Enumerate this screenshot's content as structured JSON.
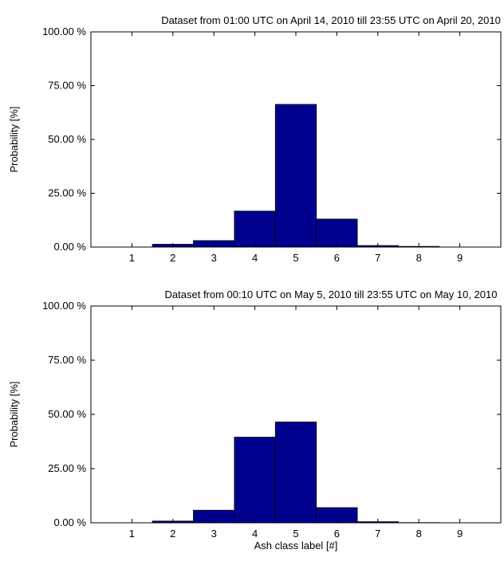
{
  "chart_data": [
    {
      "type": "bar",
      "title": "Dataset from 01:00 UTC on April 14, 2010 till 23:55 UTC on April 20, 2010",
      "xlabel": "",
      "ylabel": "Probability [%]",
      "categories": [
        "1",
        "2",
        "3",
        "4",
        "5",
        "6",
        "7",
        "8",
        "9"
      ],
      "values": [
        0.0,
        1.3,
        3.0,
        16.7,
        66.3,
        13.0,
        0.7,
        0.3,
        0.0
      ],
      "xlim": [
        0,
        10
      ],
      "ylim": [
        0,
        100
      ],
      "yticks": [
        "0.00 %",
        "25.00 %",
        "50.00 %",
        "75.00 %",
        "100.00 %"
      ],
      "ytick_values": [
        0,
        25,
        50,
        75,
        100
      ],
      "bar_color": "#00008f",
      "grid": false,
      "legend": "none"
    },
    {
      "type": "bar",
      "title": "Dataset from 00:10 UTC on May 5, 2010 till 23:55 UTC on May 10, 2010",
      "xlabel": "Ash class label [#]",
      "ylabel": "Probability [%]",
      "categories": [
        "1",
        "2",
        "3",
        "4",
        "5",
        "6",
        "7",
        "8",
        "9"
      ],
      "values": [
        0.0,
        0.8,
        5.8,
        39.5,
        46.5,
        7.0,
        0.5,
        0.1,
        0.0
      ],
      "xlim": [
        0,
        10
      ],
      "ylim": [
        0,
        100
      ],
      "yticks": [
        "0.00 %",
        "25.00 %",
        "50.00 %",
        "75.00 %",
        "100.00 %"
      ],
      "ytick_values": [
        0,
        25,
        50,
        75,
        100
      ],
      "bar_color": "#00008f",
      "grid": false,
      "legend": "none"
    }
  ]
}
